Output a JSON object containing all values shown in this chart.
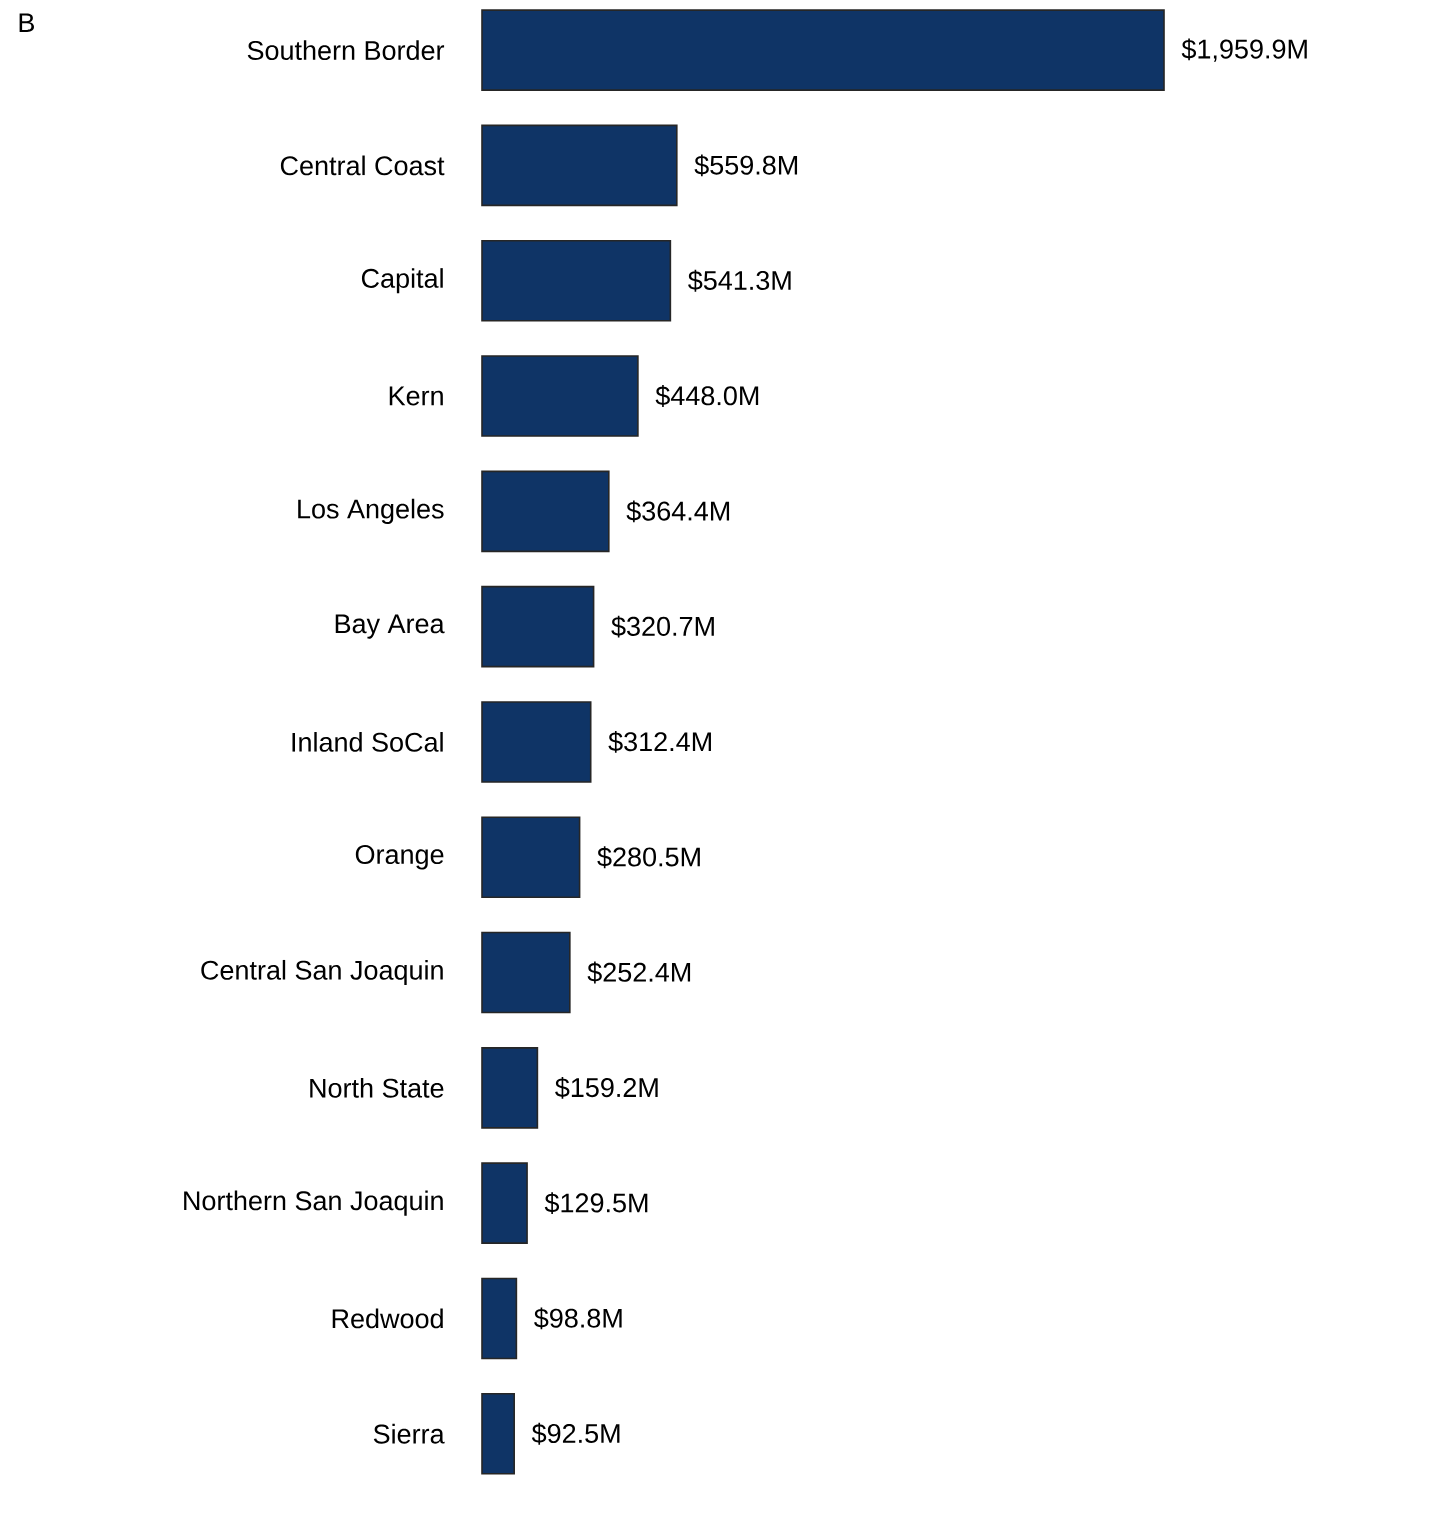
{
  "chart_data": {
    "type": "bar",
    "orientation": "horizontal",
    "annotations": [
      "B"
    ],
    "categories": [
      "Southern Border",
      "Central Coast",
      "Capital",
      "Kern",
      "Los Angeles",
      "Bay Area",
      "Inland SoCal",
      "Orange",
      "Central San Joaquin",
      "North State",
      "Northern San Joaquin",
      "Redwood",
      "Sierra"
    ],
    "values": [
      1959.9,
      559.8,
      541.3,
      448.0,
      364.4,
      320.7,
      312.4,
      280.5,
      252.4,
      159.2,
      129.5,
      98.8,
      92.5
    ],
    "value_labels": [
      "$1,959.9M",
      "$559.8M",
      "$541.3M",
      "$448.0M",
      "$364.4M",
      "$320.7M",
      "$312.4M",
      "$280.5M",
      "$252.4M",
      "$159.2M",
      "$129.5M",
      "$98.8M",
      "$92.5M"
    ],
    "color": "#0f3466"
  }
}
